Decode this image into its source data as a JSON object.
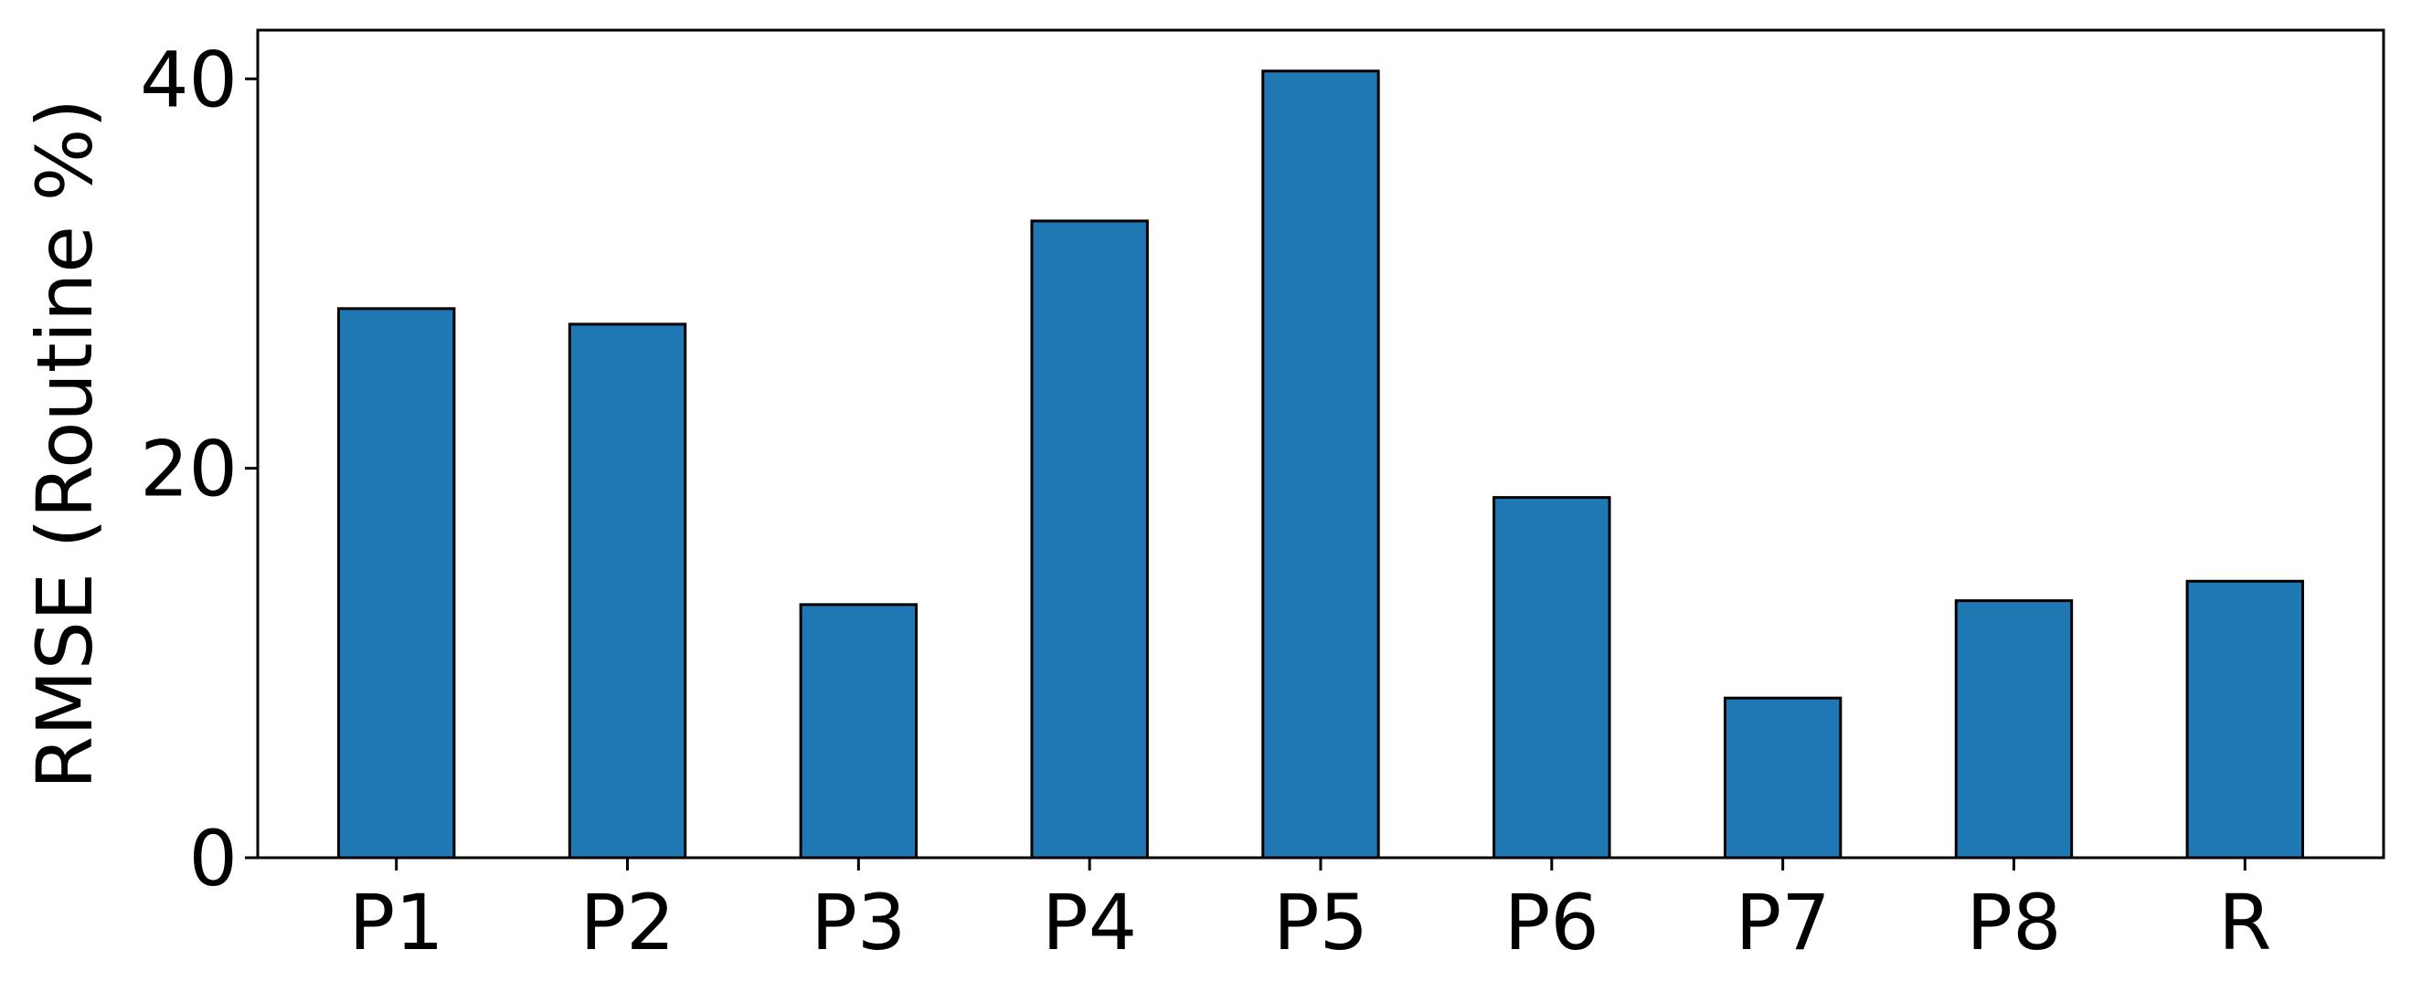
{
  "chart_data": {
    "type": "bar",
    "title": "",
    "xlabel": "",
    "ylabel": "RMSE (Routine %)",
    "categories": [
      "P1",
      "P2",
      "P3",
      "P4",
      "P5",
      "P6",
      "P7",
      "P8",
      "R"
    ],
    "values": [
      28.2,
      27.4,
      13.0,
      32.7,
      40.4,
      18.5,
      8.2,
      13.2,
      14.2
    ],
    "ylim": [
      0,
      42.5
    ],
    "yticks": [
      0,
      20,
      40
    ],
    "ytick_labels": [
      "0",
      "20",
      "40"
    ],
    "grid": false,
    "legend": "none",
    "bar_color": "#1f77b4",
    "edge_color": "#000000"
  }
}
